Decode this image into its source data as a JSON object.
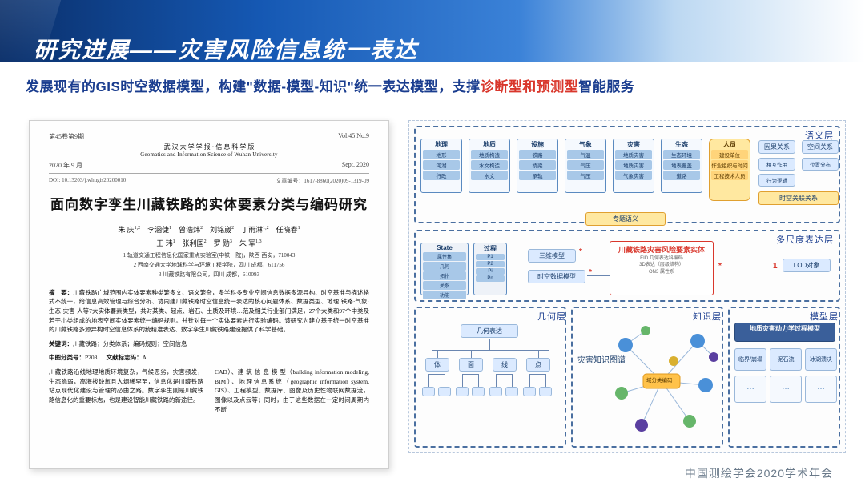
{
  "header": {
    "title": "研究进展——灾害风险信息统一表达"
  },
  "subtitle": {
    "p1": "发展现有的GIS时空数据模型，构建\"数据-模型-知识\"统一表达模型，支撑",
    "red": "诊断型和预测型",
    "p2": "智能服务"
  },
  "paper": {
    "volume": "第45卷第9期",
    "date_cn": "2020 年 9 月",
    "journal_cn": "武 汉 大 学 学 报 · 信 息 科 学 版",
    "journal_en": "Geomatics and Information Science of Wuhan University",
    "vol_en": "Vol.45  No.9",
    "date_en": "Sept. 2020",
    "doi": "DOI: 10.13203/j.whugis20200010",
    "artno": "文章编号：1617-8860(2020)09-1319-09",
    "title": "面向数字孪生川藏铁路的实体要素分类与编码研究",
    "authors1": "朱 庆<sup>1,2</sup>　李涵倢<sup>1</sup>　曾浩炜<sup>2</sup>　刘铭崴<sup>2</sup>　丁雨淋<sup>1,2</sup>　任晓春<sup>1</sup>",
    "authors2": "王 玮<sup>1</sup>　张利国<sup>2</sup>　罗 勋<sup>3</sup>　朱 军<sup>1,3</sup>",
    "affil1": "1 轨道交通工程信息化国家重点实验室(中铁一院)，陕西 西安，710043",
    "affil2": "2 西南交通大学地球科学与环境工程学院，四川 成都，611756",
    "affil3": "3 川藏铁路有限公司，四川 成都，610093",
    "abs_lbl": "摘　要：",
    "abs": "川藏铁路广域范围内实体要素种类繁多文、语义繁杂，多学科多专业空间信息数据多源异构、时空基准与描述格式不统一，给信息高效管理与综合分析、协同建川藏铁路时空信息统一表达的核心问题体系、数据类型、地理·铁路·气象·生态·灾害·人等7大实体要素类型，共对某类、起点、岩石、土质及环境…范及相关行业部门满足，27个大类和97个中类及若干小类组成的地表空间实体要素统一编码规则。并针对每一个实体要素进行实验编码。该研究为建立基于统一时空基准的川藏铁路多源异构时空信息体系的统精准表达、数字孪生川藏铁路建设提供了科学基础。",
    "kw_lbl": "关键词：",
    "kw": "川藏铁路；分类体系；编码规则；空间信息",
    "cls_lbl": "中图分类号：",
    "cls": "P208",
    "doc_lbl": "文献标志码：",
    "doc": "A",
    "col1": "川藏铁路沿线地理地质环境复杂，气候恶劣，灾害频发，生态脆弱，高海拔缺氧且人烟稀罕至，信息化是川藏铁路站点现代化建设与管理的必由之路。数字孪生则是川藏铁路信息化的重要标志，也是建设智能川藏铁路的新途径。",
    "col2": "CAD）、建 筑 信 息 模 型（building information modeling, BIM）、地理信息系统（geographic information system, GIS）、工程模型、数据库、图像及历史性物联网数据流，图像以及点云等；同时，由于这些数据在一定时间周期内不断"
  },
  "diagram": {
    "layers": {
      "semantic": "语义层",
      "scale": "多尺度表达层",
      "geometry": "几何层",
      "knowledge": "知识层",
      "model": "模型层"
    },
    "semantic_cols": [
      {
        "t": "地理",
        "subs": [
          "地形",
          "河湖",
          "行政"
        ]
      },
      {
        "t": "地质",
        "subs": [
          "地质构造",
          "水文构造",
          "水文"
        ]
      },
      {
        "t": "设施",
        "subs": [
          "铁路",
          "桥梁",
          "承轨"
        ]
      },
      {
        "t": "气象",
        "subs": [
          "气温",
          "气压",
          "气压"
        ]
      },
      {
        "t": "灾害",
        "subs": [
          "地质灾害",
          "地质灾害",
          "气象灾害"
        ]
      },
      {
        "t": "生态",
        "subs": [
          "生态环境",
          "地表覆盖",
          "道路"
        ]
      },
      {
        "t": "人员",
        "subs": [
          "建设单位",
          "作业组织与时间",
          "工程技术人员"
        ]
      }
    ],
    "rel_boxes": [
      "因果关系",
      "空间关系"
    ],
    "rel_subs": [
      "相互作用",
      "位置分布",
      "行为逻辑"
    ],
    "stcode": "时空关联关系",
    "zty": "专题语义",
    "scale_row": {
      "l1": "三维模型",
      "l2": "时空数据模型",
      "center_t": "川藏铁路灾害风险要素实体",
      "center_s": "EID  几何表达科编码",
      "center_s2": "3D表达（层级结构）",
      "center_s3": "ON3  属性系",
      "r": "LOD对象"
    },
    "state_box": {
      "title": "State",
      "items": [
        "属性集",
        "几何",
        "拓扑",
        "关系",
        "功能"
      ],
      "proc_t": "过程",
      "proc_items": [
        "P1",
        "P2",
        "Pi",
        "Pn"
      ]
    },
    "geom": {
      "root": "几何表达",
      "children": [
        "体",
        "面",
        "线",
        "点"
      ]
    },
    "kg_label": "灾害知识图谱",
    "kg_center": "域分类编码",
    "model_box": {
      "t": "地质灾害动力学过程模型",
      "items": [
        "临界/崩塌",
        "泥石流",
        "冰湖溃决"
      ]
    }
  },
  "footer": "中国测绘学会2020学术年会",
  "colors": {
    "title_blue": "#1a3d8f",
    "accent_red": "#d9372c",
    "box_blue": "#a8c8e8",
    "box_border": "#5a8ac0",
    "hl_box": "#ffe8a0",
    "hl_border": "#e0a030",
    "dash": "#4a6fa0"
  }
}
